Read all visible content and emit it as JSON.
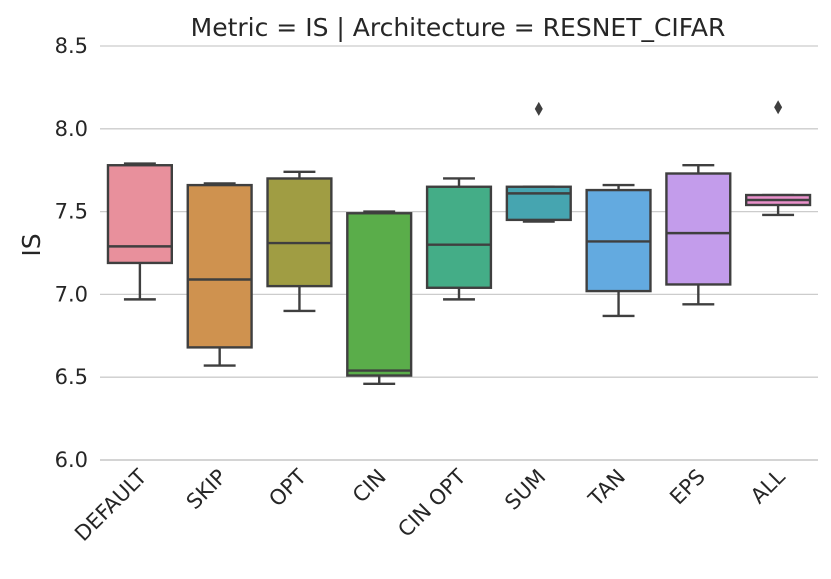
{
  "chart_data": {
    "type": "box",
    "title": "Metric = IS | Architecture = RESNET_CIFAR",
    "xlabel": "",
    "ylabel": "IS",
    "ylim": [
      6.0,
      8.5
    ],
    "yticks": [
      6.0,
      6.5,
      7.0,
      7.5,
      8.0,
      8.5
    ],
    "ytick_labels": [
      "6.0",
      "6.5",
      "7.0",
      "7.5",
      "8.0",
      "8.5"
    ],
    "grid": "horizontal",
    "categories": [
      "DEFAULT",
      "SKIP",
      "OPT",
      "CIN",
      "CIN OPT",
      "SUM",
      "TAN",
      "EPS",
      "ALL"
    ],
    "boxes": [
      {
        "name": "DEFAULT",
        "whislo": 6.97,
        "q1": 7.19,
        "med": 7.29,
        "q3": 7.78,
        "whishi": 7.79,
        "fliers": [],
        "color": "#e8909c"
      },
      {
        "name": "SKIP",
        "whislo": 6.57,
        "q1": 6.68,
        "med": 7.09,
        "q3": 7.66,
        "whishi": 7.67,
        "fliers": [],
        "color": "#cf924f"
      },
      {
        "name": "OPT",
        "whislo": 6.9,
        "q1": 7.05,
        "med": 7.31,
        "q3": 7.7,
        "whishi": 7.74,
        "fliers": [],
        "color": "#a09d43"
      },
      {
        "name": "CIN",
        "whislo": 6.46,
        "q1": 6.51,
        "med": 6.54,
        "q3": 7.49,
        "whishi": 7.5,
        "fliers": [],
        "color": "#5aad4a"
      },
      {
        "name": "CIN OPT",
        "whislo": 6.97,
        "q1": 7.04,
        "med": 7.3,
        "q3": 7.65,
        "whishi": 7.7,
        "fliers": [],
        "color": "#44ad87"
      },
      {
        "name": "SUM",
        "whislo": 7.44,
        "q1": 7.45,
        "med": 7.61,
        "q3": 7.65,
        "whishi": 7.65,
        "fliers": [
          8.12
        ],
        "color": "#46a5b0"
      },
      {
        "name": "TAN",
        "whislo": 6.87,
        "q1": 7.02,
        "med": 7.32,
        "q3": 7.63,
        "whishi": 7.66,
        "fliers": [],
        "color": "#63aae0"
      },
      {
        "name": "EPS",
        "whislo": 6.94,
        "q1": 7.06,
        "med": 7.37,
        "q3": 7.73,
        "whishi": 7.78,
        "fliers": [],
        "color": "#c39ceb"
      },
      {
        "name": "ALL",
        "whislo": 7.48,
        "q1": 7.54,
        "med": 7.57,
        "q3": 7.6,
        "whishi": 7.6,
        "fliers": [
          8.13
        ],
        "color": "#ea91cb"
      }
    ]
  }
}
